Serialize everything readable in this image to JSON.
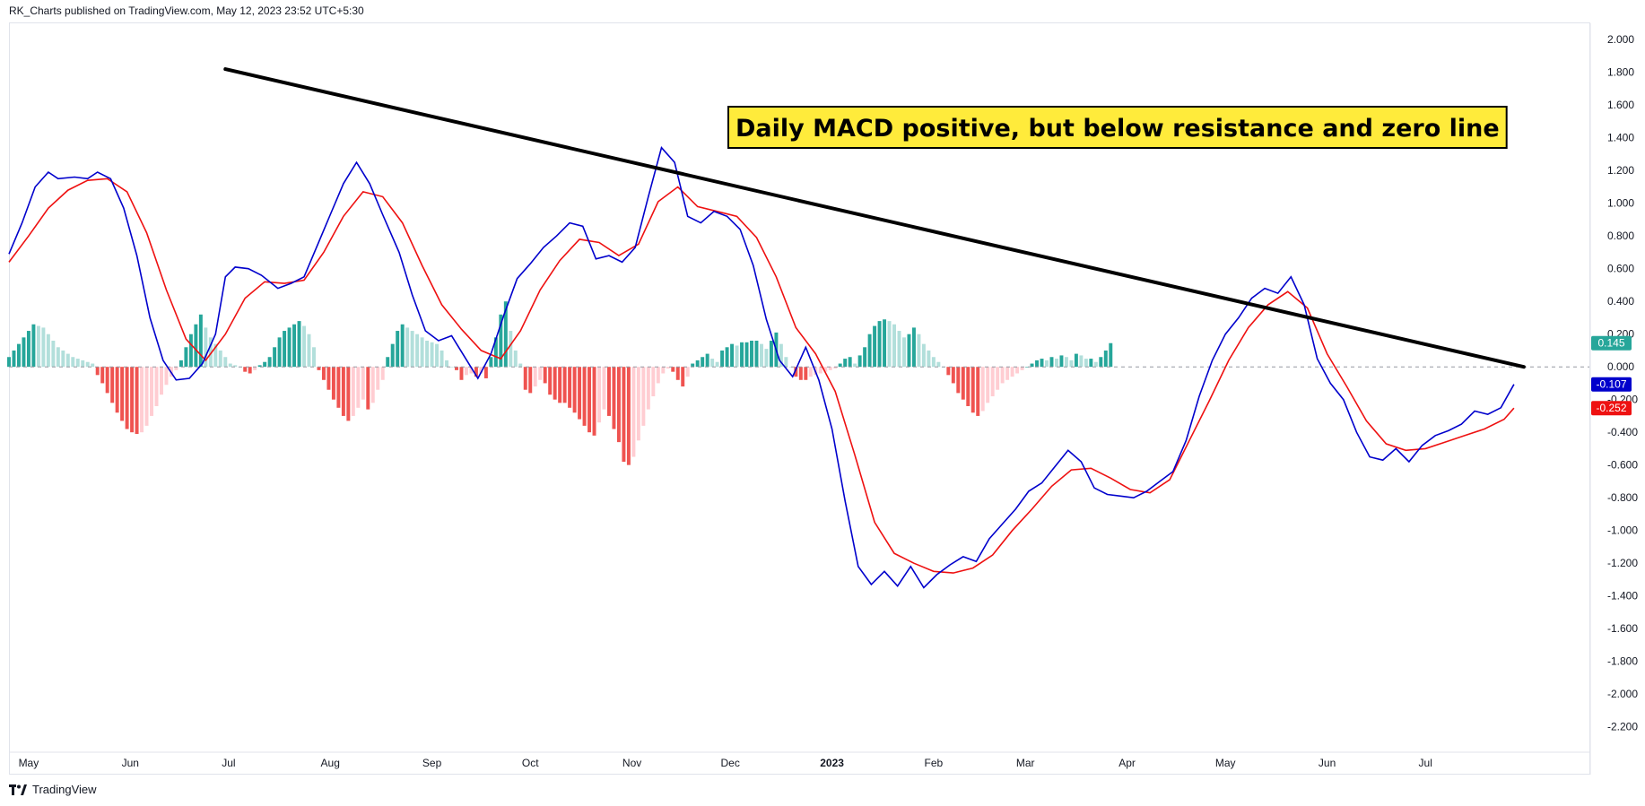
{
  "header": {
    "published_text": "RK_Charts published on TradingView.com, May 12, 2023 23:52 UTC+5:30"
  },
  "footer": {
    "brand_text": "TradingView",
    "logo_icon": "tradingview-logo-icon"
  },
  "colors": {
    "macd_line": "#0000cc",
    "signal_line": "#ee1111",
    "hist_pos_strong": "#26a69a",
    "hist_pos_weak": "#b2dfdb",
    "hist_neg_strong": "#ef5350",
    "hist_neg_weak": "#ffcdd2",
    "trendline": "#000000",
    "annotation_bg": "#ffeb3b",
    "badge_hist": "#26a69a",
    "badge_macd": "#0000cc",
    "badge_signal": "#ee1111"
  },
  "chart_data": {
    "type": "line",
    "title": "",
    "xlabel": "",
    "ylabel": "",
    "x_range": [
      "2022-04-25",
      "2023-08-20"
    ],
    "ylim": [
      -2.35,
      2.1
    ],
    "y_ticks": [
      "2.000",
      "1.800",
      "1.600",
      "1.400",
      "1.200",
      "1.000",
      "0.800",
      "0.600",
      "0.400",
      "0.200",
      "0.000",
      "-0.200",
      "-0.400",
      "-0.600",
      "-0.800",
      "-1.000",
      "-1.200",
      "-1.400",
      "-1.600",
      "-1.800",
      "-2.000",
      "-2.200"
    ],
    "x_ticks": [
      {
        "label": "May",
        "date": "2022-05-01",
        "bold": false
      },
      {
        "label": "Jun",
        "date": "2022-06-01",
        "bold": false
      },
      {
        "label": "Jul",
        "date": "2022-07-01",
        "bold": false
      },
      {
        "label": "Aug",
        "date": "2022-08-01",
        "bold": false
      },
      {
        "label": "Sep",
        "date": "2022-09-01",
        "bold": false
      },
      {
        "label": "Oct",
        "date": "2022-10-01",
        "bold": false
      },
      {
        "label": "Nov",
        "date": "2022-11-01",
        "bold": false
      },
      {
        "label": "Dec",
        "date": "2022-12-01",
        "bold": false
      },
      {
        "label": "2023",
        "date": "2023-01-01",
        "bold": true
      },
      {
        "label": "Feb",
        "date": "2023-02-01",
        "bold": false
      },
      {
        "label": "Mar",
        "date": "2023-03-01",
        "bold": false
      },
      {
        "label": "Apr",
        "date": "2023-04-01",
        "bold": false
      },
      {
        "label": "May",
        "date": "2023-05-01",
        "bold": false
      },
      {
        "label": "Jun",
        "date": "2023-06-01",
        "bold": false
      },
      {
        "label": "Jul",
        "date": "2023-07-01",
        "bold": false
      }
    ],
    "zero_line": 0,
    "series": [
      {
        "key": "macd",
        "points": [
          [
            "2022-04-25",
            0.69
          ],
          [
            "2022-04-29",
            0.88
          ],
          [
            "2022-05-03",
            1.1
          ],
          [
            "2022-05-07",
            1.19
          ],
          [
            "2022-05-10",
            1.15
          ],
          [
            "2022-05-15",
            1.16
          ],
          [
            "2022-05-19",
            1.15
          ],
          [
            "2022-05-22",
            1.19
          ],
          [
            "2022-05-26",
            1.15
          ],
          [
            "2022-05-30",
            0.97
          ],
          [
            "2022-06-03",
            0.68
          ],
          [
            "2022-06-07",
            0.3
          ],
          [
            "2022-06-11",
            0.04
          ],
          [
            "2022-06-15",
            -0.08
          ],
          [
            "2022-06-19",
            -0.07
          ],
          [
            "2022-06-23",
            0.02
          ],
          [
            "2022-06-27",
            0.2
          ],
          [
            "2022-06-30",
            0.55
          ],
          [
            "2022-07-03",
            0.61
          ],
          [
            "2022-07-07",
            0.6
          ],
          [
            "2022-07-11",
            0.56
          ],
          [
            "2022-07-16",
            0.48
          ],
          [
            "2022-07-20",
            0.51
          ],
          [
            "2022-07-24",
            0.55
          ],
          [
            "2022-07-28",
            0.74
          ],
          [
            "2022-08-01",
            0.93
          ],
          [
            "2022-08-05",
            1.12
          ],
          [
            "2022-08-09",
            1.25
          ],
          [
            "2022-08-13",
            1.12
          ],
          [
            "2022-08-17",
            0.93
          ],
          [
            "2022-08-22",
            0.7
          ],
          [
            "2022-08-26",
            0.44
          ],
          [
            "2022-08-30",
            0.22
          ],
          [
            "2022-09-03",
            0.16
          ],
          [
            "2022-09-07",
            0.19
          ],
          [
            "2022-09-11",
            0.06
          ],
          [
            "2022-09-15",
            -0.07
          ],
          [
            "2022-09-19",
            0.08
          ],
          [
            "2022-09-23",
            0.32
          ],
          [
            "2022-09-27",
            0.54
          ],
          [
            "2022-10-01",
            0.63
          ],
          [
            "2022-10-05",
            0.73
          ],
          [
            "2022-10-09",
            0.8
          ],
          [
            "2022-10-13",
            0.88
          ],
          [
            "2022-10-17",
            0.86
          ],
          [
            "2022-10-21",
            0.66
          ],
          [
            "2022-10-25",
            0.68
          ],
          [
            "2022-10-29",
            0.64
          ],
          [
            "2022-11-02",
            0.73
          ],
          [
            "2022-11-06",
            1.04
          ],
          [
            "2022-11-10",
            1.34
          ],
          [
            "2022-11-14",
            1.25
          ],
          [
            "2022-11-18",
            0.92
          ],
          [
            "2022-11-22",
            0.88
          ],
          [
            "2022-11-26",
            0.95
          ],
          [
            "2022-11-30",
            0.92
          ],
          [
            "2022-12-04",
            0.84
          ],
          [
            "2022-12-08",
            0.62
          ],
          [
            "2022-12-12",
            0.29
          ],
          [
            "2022-12-16",
            0.04
          ],
          [
            "2022-12-20",
            -0.06
          ],
          [
            "2022-12-24",
            0.12
          ],
          [
            "2022-12-28",
            -0.08
          ],
          [
            "2023-01-01",
            -0.38
          ],
          [
            "2023-01-05",
            -0.82
          ],
          [
            "2023-01-09",
            -1.22
          ],
          [
            "2023-01-13",
            -1.33
          ],
          [
            "2023-01-17",
            -1.25
          ],
          [
            "2023-01-21",
            -1.34
          ],
          [
            "2023-01-25",
            -1.22
          ],
          [
            "2023-01-29",
            -1.35
          ],
          [
            "2023-02-02",
            -1.27
          ],
          [
            "2023-02-06",
            -1.21
          ],
          [
            "2023-02-10",
            -1.16
          ],
          [
            "2023-02-14",
            -1.19
          ],
          [
            "2023-02-18",
            -1.05
          ],
          [
            "2023-02-22",
            -0.96
          ],
          [
            "2023-02-26",
            -0.87
          ],
          [
            "2023-03-02",
            -0.76
          ],
          [
            "2023-03-06",
            -0.71
          ],
          [
            "2023-03-10",
            -0.61
          ],
          [
            "2023-03-14",
            -0.51
          ],
          [
            "2023-03-18",
            -0.58
          ],
          [
            "2023-03-22",
            -0.74
          ],
          [
            "2023-03-26",
            -0.78
          ],
          [
            "2023-03-30",
            -0.79
          ],
          [
            "2023-04-03",
            -0.8
          ],
          [
            "2023-04-07",
            -0.76
          ],
          [
            "2023-04-11",
            -0.7
          ],
          [
            "2023-04-15",
            -0.64
          ],
          [
            "2023-04-19",
            -0.45
          ],
          [
            "2023-04-23",
            -0.18
          ],
          [
            "2023-04-27",
            0.04
          ],
          [
            "2023-05-01",
            0.2
          ],
          [
            "2023-05-05",
            0.3
          ],
          [
            "2023-05-09",
            0.42
          ],
          [
            "2023-05-13",
            0.48
          ],
          [
            "2023-05-17",
            0.45
          ],
          [
            "2023-05-21",
            0.55
          ],
          [
            "2023-05-25",
            0.38
          ],
          [
            "2023-05-29",
            0.05
          ],
          [
            "2023-06-02",
            -0.1
          ],
          [
            "2023-06-06",
            -0.2
          ],
          [
            "2023-06-10",
            -0.4
          ],
          [
            "2023-06-14",
            -0.55
          ],
          [
            "2023-06-18",
            -0.57
          ],
          [
            "2023-06-22",
            -0.5
          ],
          [
            "2023-06-26",
            -0.58
          ],
          [
            "2023-06-30",
            -0.48
          ],
          [
            "2023-07-04",
            -0.42
          ],
          [
            "2023-07-08",
            -0.39
          ],
          [
            "2023-07-12",
            -0.35
          ],
          [
            "2023-07-16",
            -0.27
          ],
          [
            "2023-07-20",
            -0.29
          ],
          [
            "2023-07-24",
            -0.25
          ],
          [
            "2023-07-28",
            -0.107
          ]
        ]
      },
      {
        "key": "signal",
        "points": [
          [
            "2022-04-25",
            0.64
          ],
          [
            "2022-05-01",
            0.8
          ],
          [
            "2022-05-07",
            0.97
          ],
          [
            "2022-05-13",
            1.08
          ],
          [
            "2022-05-19",
            1.14
          ],
          [
            "2022-05-25",
            1.15
          ],
          [
            "2022-05-31",
            1.07
          ],
          [
            "2022-06-06",
            0.82
          ],
          [
            "2022-06-12",
            0.47
          ],
          [
            "2022-06-18",
            0.17
          ],
          [
            "2022-06-24",
            0.04
          ],
          [
            "2022-06-30",
            0.2
          ],
          [
            "2022-07-06",
            0.42
          ],
          [
            "2022-07-12",
            0.52
          ],
          [
            "2022-07-18",
            0.51
          ],
          [
            "2022-07-24",
            0.53
          ],
          [
            "2022-07-30",
            0.7
          ],
          [
            "2022-08-05",
            0.92
          ],
          [
            "2022-08-11",
            1.07
          ],
          [
            "2022-08-17",
            1.04
          ],
          [
            "2022-08-23",
            0.88
          ],
          [
            "2022-08-29",
            0.62
          ],
          [
            "2022-09-04",
            0.38
          ],
          [
            "2022-09-10",
            0.23
          ],
          [
            "2022-09-16",
            0.1
          ],
          [
            "2022-09-22",
            0.05
          ],
          [
            "2022-09-28",
            0.22
          ],
          [
            "2022-10-04",
            0.47
          ],
          [
            "2022-10-10",
            0.65
          ],
          [
            "2022-10-16",
            0.78
          ],
          [
            "2022-10-22",
            0.76
          ],
          [
            "2022-10-28",
            0.68
          ],
          [
            "2022-11-03",
            0.75
          ],
          [
            "2022-11-09",
            1.01
          ],
          [
            "2022-11-15",
            1.1
          ],
          [
            "2022-11-21",
            0.98
          ],
          [
            "2022-11-27",
            0.95
          ],
          [
            "2022-12-03",
            0.92
          ],
          [
            "2022-12-09",
            0.79
          ],
          [
            "2022-12-15",
            0.55
          ],
          [
            "2022-12-21",
            0.24
          ],
          [
            "2022-12-27",
            0.08
          ],
          [
            "2023-01-02",
            -0.15
          ],
          [
            "2023-01-08",
            -0.54
          ],
          [
            "2023-01-14",
            -0.95
          ],
          [
            "2023-01-20",
            -1.14
          ],
          [
            "2023-01-26",
            -1.2
          ],
          [
            "2023-02-01",
            -1.25
          ],
          [
            "2023-02-07",
            -1.26
          ],
          [
            "2023-02-13",
            -1.23
          ],
          [
            "2023-02-19",
            -1.15
          ],
          [
            "2023-02-25",
            -1.0
          ],
          [
            "2023-03-03",
            -0.87
          ],
          [
            "2023-03-09",
            -0.73
          ],
          [
            "2023-03-15",
            -0.63
          ],
          [
            "2023-03-21",
            -0.62
          ],
          [
            "2023-03-27",
            -0.68
          ],
          [
            "2023-04-02",
            -0.75
          ],
          [
            "2023-04-08",
            -0.77
          ],
          [
            "2023-04-14",
            -0.69
          ],
          [
            "2023-04-20",
            -0.45
          ],
          [
            "2023-04-26",
            -0.21
          ],
          [
            "2023-05-02",
            0.04
          ],
          [
            "2023-05-08",
            0.24
          ],
          [
            "2023-05-14",
            0.38
          ],
          [
            "2023-05-20",
            0.46
          ],
          [
            "2023-05-26",
            0.36
          ],
          [
            "2023-06-01",
            0.08
          ],
          [
            "2023-06-07",
            -0.12
          ],
          [
            "2023-06-13",
            -0.33
          ],
          [
            "2023-06-19",
            -0.47
          ],
          [
            "2023-06-25",
            -0.51
          ],
          [
            "2023-07-01",
            -0.5
          ],
          [
            "2023-07-07",
            -0.46
          ],
          [
            "2023-07-13",
            -0.42
          ],
          [
            "2023-07-19",
            -0.38
          ],
          [
            "2023-07-25",
            -0.32
          ],
          [
            "2023-07-28",
            -0.252
          ]
        ]
      }
    ],
    "histogram": {
      "start": "2022-04-25",
      "step_days": 1.5,
      "values": [
        0.06,
        0.1,
        0.14,
        0.18,
        0.22,
        0.26,
        0.25,
        0.24,
        0.2,
        0.16,
        0.12,
        0.1,
        0.08,
        0.06,
        0.05,
        0.04,
        0.03,
        0.02,
        -0.05,
        -0.1,
        -0.16,
        -0.22,
        -0.28,
        -0.33,
        -0.38,
        -0.4,
        -0.41,
        -0.4,
        -0.36,
        -0.3,
        -0.24,
        -0.17,
        -0.11,
        -0.06,
        -0.02,
        0.04,
        0.12,
        0.2,
        0.26,
        0.32,
        0.24,
        0.18,
        0.14,
        0.1,
        0.06,
        0.02,
        0.01,
        0.0,
        -0.03,
        -0.04,
        -0.02,
        0.01,
        0.03,
        0.06,
        0.12,
        0.18,
        0.22,
        0.24,
        0.26,
        0.28,
        0.25,
        0.2,
        0.12,
        -0.02,
        -0.08,
        -0.14,
        -0.2,
        -0.25,
        -0.3,
        -0.33,
        -0.3,
        -0.25,
        -0.2,
        -0.26,
        -0.22,
        -0.14,
        -0.08,
        0.06,
        0.14,
        0.22,
        0.26,
        0.24,
        0.22,
        0.2,
        0.18,
        0.16,
        0.15,
        0.14,
        0.1,
        0.04,
        0.0,
        -0.02,
        -0.08,
        -0.05,
        -0.04,
        -0.06,
        -0.04,
        -0.07,
        0.06,
        0.18,
        0.32,
        0.4,
        0.22,
        0.1,
        0.02,
        -0.14,
        -0.16,
        -0.12,
        -0.08,
        -0.1,
        -0.17,
        -0.2,
        -0.22,
        -0.22,
        -0.25,
        -0.28,
        -0.32,
        -0.36,
        -0.4,
        -0.42,
        -0.34,
        -0.26,
        -0.3,
        -0.38,
        -0.46,
        -0.58,
        -0.6,
        -0.55,
        -0.45,
        -0.36,
        -0.26,
        -0.18,
        -0.1,
        -0.04,
        -0.01,
        -0.03,
        -0.08,
        -0.12,
        -0.06,
        0.02,
        0.04,
        0.06,
        0.08,
        0.05,
        0.03,
        0.1,
        0.12,
        0.14,
        0.13,
        0.15,
        0.15,
        0.16,
        0.16,
        0.14,
        0.11,
        0.16,
        0.21,
        0.14,
        0.06,
        0.0,
        -0.06,
        -0.08,
        -0.08,
        -0.06,
        -0.05,
        -0.04,
        -0.03,
        -0.02,
        -0.01,
        0.02,
        0.05,
        0.06,
        0.02,
        0.07,
        0.12,
        0.2,
        0.25,
        0.28,
        0.29,
        0.28,
        0.26,
        0.22,
        0.18,
        0.2,
        0.24,
        0.2,
        0.14,
        0.1,
        0.06,
        0.03,
        0.0,
        -0.05,
        -0.1,
        -0.16,
        -0.2,
        -0.24,
        -0.28,
        -0.3,
        -0.27,
        -0.22,
        -0.18,
        -0.14,
        -0.1,
        -0.08,
        -0.06,
        -0.04,
        -0.02,
        0.0,
        0.02,
        0.04,
        0.05,
        0.04,
        0.06,
        0.05,
        0.07,
        0.06,
        0.04,
        0.08,
        0.07,
        0.05,
        0.05,
        0.03,
        0.06,
        0.1,
        0.145
      ]
    },
    "trendline": {
      "from": [
        "2022-06-30",
        1.82
      ],
      "to": [
        "2023-07-31",
        0.0
      ]
    },
    "annotation": {
      "text": "Daily MACD positive, but below resistance and zero line"
    },
    "value_badges": [
      {
        "key": "hist",
        "text": "0.145",
        "value": 0.145
      },
      {
        "key": "macd",
        "text": "-0.107",
        "value": -0.107
      },
      {
        "key": "signal",
        "text": "-0.252",
        "value": -0.252
      }
    ]
  }
}
